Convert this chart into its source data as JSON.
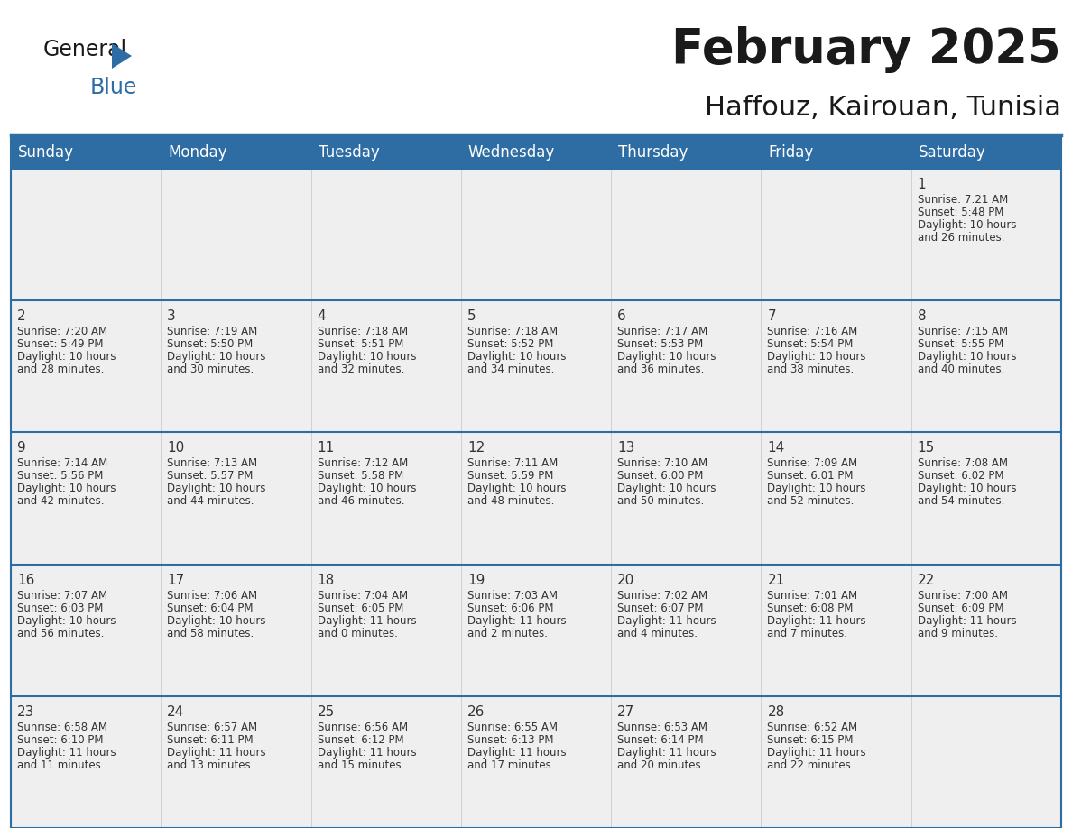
{
  "title": "February 2025",
  "subtitle": "Haffouz, Kairouan, Tunisia",
  "header_bg": "#2E6DA4",
  "header_text": "#FFFFFF",
  "cell_bg": "#EFEFEF",
  "border_color": "#2E6DA4",
  "text_color": "#333333",
  "day_names": [
    "Sunday",
    "Monday",
    "Tuesday",
    "Wednesday",
    "Thursday",
    "Friday",
    "Saturday"
  ],
  "days": [
    {
      "day": 1,
      "col": 6,
      "row": 0,
      "sunrise": "7:21 AM",
      "sunset": "5:48 PM",
      "daylight": "10 hours and 26 minutes."
    },
    {
      "day": 2,
      "col": 0,
      "row": 1,
      "sunrise": "7:20 AM",
      "sunset": "5:49 PM",
      "daylight": "10 hours and 28 minutes."
    },
    {
      "day": 3,
      "col": 1,
      "row": 1,
      "sunrise": "7:19 AM",
      "sunset": "5:50 PM",
      "daylight": "10 hours and 30 minutes."
    },
    {
      "day": 4,
      "col": 2,
      "row": 1,
      "sunrise": "7:18 AM",
      "sunset": "5:51 PM",
      "daylight": "10 hours and 32 minutes."
    },
    {
      "day": 5,
      "col": 3,
      "row": 1,
      "sunrise": "7:18 AM",
      "sunset": "5:52 PM",
      "daylight": "10 hours and 34 minutes."
    },
    {
      "day": 6,
      "col": 4,
      "row": 1,
      "sunrise": "7:17 AM",
      "sunset": "5:53 PM",
      "daylight": "10 hours and 36 minutes."
    },
    {
      "day": 7,
      "col": 5,
      "row": 1,
      "sunrise": "7:16 AM",
      "sunset": "5:54 PM",
      "daylight": "10 hours and 38 minutes."
    },
    {
      "day": 8,
      "col": 6,
      "row": 1,
      "sunrise": "7:15 AM",
      "sunset": "5:55 PM",
      "daylight": "10 hours and 40 minutes."
    },
    {
      "day": 9,
      "col": 0,
      "row": 2,
      "sunrise": "7:14 AM",
      "sunset": "5:56 PM",
      "daylight": "10 hours and 42 minutes."
    },
    {
      "day": 10,
      "col": 1,
      "row": 2,
      "sunrise": "7:13 AM",
      "sunset": "5:57 PM",
      "daylight": "10 hours and 44 minutes."
    },
    {
      "day": 11,
      "col": 2,
      "row": 2,
      "sunrise": "7:12 AM",
      "sunset": "5:58 PM",
      "daylight": "10 hours and 46 minutes."
    },
    {
      "day": 12,
      "col": 3,
      "row": 2,
      "sunrise": "7:11 AM",
      "sunset": "5:59 PM",
      "daylight": "10 hours and 48 minutes."
    },
    {
      "day": 13,
      "col": 4,
      "row": 2,
      "sunrise": "7:10 AM",
      "sunset": "6:00 PM",
      "daylight": "10 hours and 50 minutes."
    },
    {
      "day": 14,
      "col": 5,
      "row": 2,
      "sunrise": "7:09 AM",
      "sunset": "6:01 PM",
      "daylight": "10 hours and 52 minutes."
    },
    {
      "day": 15,
      "col": 6,
      "row": 2,
      "sunrise": "7:08 AM",
      "sunset": "6:02 PM",
      "daylight": "10 hours and 54 minutes."
    },
    {
      "day": 16,
      "col": 0,
      "row": 3,
      "sunrise": "7:07 AM",
      "sunset": "6:03 PM",
      "daylight": "10 hours and 56 minutes."
    },
    {
      "day": 17,
      "col": 1,
      "row": 3,
      "sunrise": "7:06 AM",
      "sunset": "6:04 PM",
      "daylight": "10 hours and 58 minutes."
    },
    {
      "day": 18,
      "col": 2,
      "row": 3,
      "sunrise": "7:04 AM",
      "sunset": "6:05 PM",
      "daylight": "11 hours and 0 minutes."
    },
    {
      "day": 19,
      "col": 3,
      "row": 3,
      "sunrise": "7:03 AM",
      "sunset": "6:06 PM",
      "daylight": "11 hours and 2 minutes."
    },
    {
      "day": 20,
      "col": 4,
      "row": 3,
      "sunrise": "7:02 AM",
      "sunset": "6:07 PM",
      "daylight": "11 hours and 4 minutes."
    },
    {
      "day": 21,
      "col": 5,
      "row": 3,
      "sunrise": "7:01 AM",
      "sunset": "6:08 PM",
      "daylight": "11 hours and 7 minutes."
    },
    {
      "day": 22,
      "col": 6,
      "row": 3,
      "sunrise": "7:00 AM",
      "sunset": "6:09 PM",
      "daylight": "11 hours and 9 minutes."
    },
    {
      "day": 23,
      "col": 0,
      "row": 4,
      "sunrise": "6:58 AM",
      "sunset": "6:10 PM",
      "daylight": "11 hours and 11 minutes."
    },
    {
      "day": 24,
      "col": 1,
      "row": 4,
      "sunrise": "6:57 AM",
      "sunset": "6:11 PM",
      "daylight": "11 hours and 13 minutes."
    },
    {
      "day": 25,
      "col": 2,
      "row": 4,
      "sunrise": "6:56 AM",
      "sunset": "6:12 PM",
      "daylight": "11 hours and 15 minutes."
    },
    {
      "day": 26,
      "col": 3,
      "row": 4,
      "sunrise": "6:55 AM",
      "sunset": "6:13 PM",
      "daylight": "11 hours and 17 minutes."
    },
    {
      "day": 27,
      "col": 4,
      "row": 4,
      "sunrise": "6:53 AM",
      "sunset": "6:14 PM",
      "daylight": "11 hours and 20 minutes."
    },
    {
      "day": 28,
      "col": 5,
      "row": 4,
      "sunrise": "6:52 AM",
      "sunset": "6:15 PM",
      "daylight": "11 hours and 22 minutes."
    }
  ],
  "title_fontsize": 38,
  "subtitle_fontsize": 22,
  "header_fontsize": 12,
  "day_num_fontsize": 11,
  "cell_fontsize": 8.5
}
